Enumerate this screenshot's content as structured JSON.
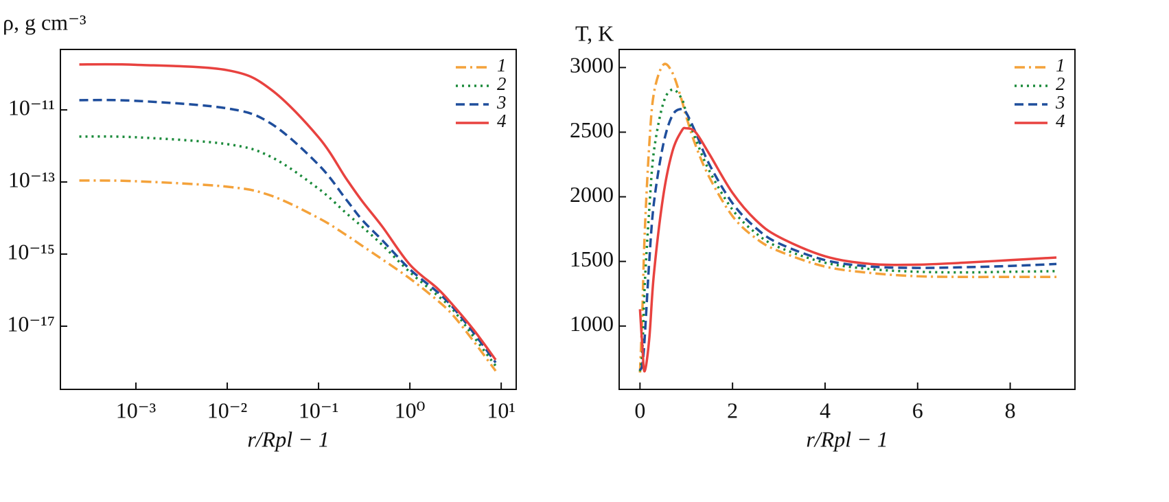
{
  "chart_data": [
    {
      "type": "line",
      "xscale": "log",
      "yscale": "log",
      "xlabel": "r/Rpl − 1",
      "ylabel": "ρ, g cm⁻³",
      "xlim": [
        0.000149,
        14.6
      ],
      "ylim": [
        1.77e-19,
        4.74e-10
      ],
      "xticks": [
        {
          "value": 0.001,
          "label": "10⁻³"
        },
        {
          "value": 0.01,
          "label": "10⁻²"
        },
        {
          "value": 0.1,
          "label": "10⁻¹"
        },
        {
          "value": 1,
          "label": "10⁰"
        },
        {
          "value": 10,
          "label": "10¹"
        }
      ],
      "yticks": [
        {
          "value": 1e-11,
          "label": "10⁻¹¹"
        },
        {
          "value": 1e-13,
          "label": "10⁻¹³"
        },
        {
          "value": 1e-15,
          "label": "10⁻¹⁵"
        },
        {
          "value": 1e-17,
          "label": "10⁻¹⁷"
        }
      ],
      "legend": "upper right",
      "x": [
        0.00024,
        0.001,
        0.01,
        0.03,
        0.1,
        0.2,
        0.3,
        0.5,
        1,
        2,
        3,
        5,
        8.7
      ],
      "series": [
        {
          "name": "1",
          "color": "#f4a23a",
          "linestyle": "dashdot",
          "values": [
            1.1e-13,
            1.05e-13,
            7.4e-14,
            4.2e-14,
            1e-14,
            3.4e-15,
            1.7e-15,
            7.1e-16,
            2.1e-16,
            5.2e-17,
            1.95e-17,
            3.8e-18,
            5.75e-19
          ]
        },
        {
          "name": "2",
          "color": "#1a8a3a",
          "linestyle": "dotted",
          "values": [
            1.82e-12,
            1.74e-12,
            1.12e-12,
            5e-13,
            6.5e-14,
            1.38e-14,
            5.75e-15,
            1.78e-15,
            3.16e-16,
            7.2e-17,
            2.75e-17,
            5.1e-18,
            7.9e-19
          ]
        },
        {
          "name": "3",
          "color": "#1f4e9c",
          "linestyle": "dashed",
          "values": [
            1.86e-11,
            1.78e-11,
            1.1e-11,
            4.2e-12,
            3e-13,
            3.3e-14,
            8.9e-15,
            2.4e-15,
            3.8e-16,
            8.9e-17,
            3.2e-17,
            6.5e-18,
            9.8e-19
          ]
        },
        {
          "name": "4",
          "color": "#e8423f",
          "linestyle": "solid",
          "values": [
            1.82e-10,
            1.78e-10,
            1.26e-10,
            3.7e-11,
            1.74e-12,
            1.26e-13,
            2.95e-14,
            5.75e-15,
            5.1e-16,
            1.12e-16,
            3.7e-17,
            7.9e-18,
            1.17e-18
          ]
        }
      ]
    },
    {
      "type": "line",
      "xscale": "linear",
      "yscale": "linear",
      "xlabel": "r/Rpl − 1",
      "ylabel": "T, K",
      "xlim": [
        -0.45,
        9.4
      ],
      "ylim": [
        510,
        3140
      ],
      "xticks": [
        0,
        2,
        4,
        6,
        8
      ],
      "yticks": [
        1000,
        1500,
        2000,
        2500,
        3000
      ],
      "legend": "upper right",
      "x": [
        0,
        0.05,
        0.1,
        0.2,
        0.3,
        0.5,
        0.7,
        0.9,
        1.0,
        1.2,
        1.5,
        2,
        2.5,
        3,
        4,
        5,
        6,
        7,
        8,
        9
      ],
      "series": [
        {
          "name": "1",
          "color": "#f4a23a",
          "linestyle": "dashdot",
          "values": [
            640,
            1100,
            1700,
            2400,
            2800,
            3020,
            2960,
            2750,
            2620,
            2400,
            2150,
            1850,
            1680,
            1580,
            1460,
            1410,
            1385,
            1380,
            1380,
            1380
          ]
        },
        {
          "name": "2",
          "color": "#1a8a3a",
          "linestyle": "dotted",
          "values": [
            650,
            800,
            1300,
            1900,
            2350,
            2720,
            2830,
            2760,
            2650,
            2450,
            2200,
            1900,
            1720,
            1610,
            1490,
            1440,
            1420,
            1415,
            1420,
            1425
          ]
        },
        {
          "name": "3",
          "color": "#1f4e9c",
          "linestyle": "dashed",
          "values": [
            660,
            700,
            900,
            1500,
            1950,
            2400,
            2630,
            2680,
            2650,
            2500,
            2250,
            1950,
            1760,
            1640,
            1510,
            1460,
            1450,
            1455,
            1465,
            1480
          ]
        },
        {
          "name": "4",
          "color": "#e8423f",
          "linestyle": "solid",
          "values": [
            1130,
            850,
            650,
            900,
            1400,
            2000,
            2350,
            2510,
            2530,
            2500,
            2330,
            2030,
            1820,
            1690,
            1540,
            1480,
            1475,
            1490,
            1510,
            1530
          ]
        }
      ]
    }
  ]
}
